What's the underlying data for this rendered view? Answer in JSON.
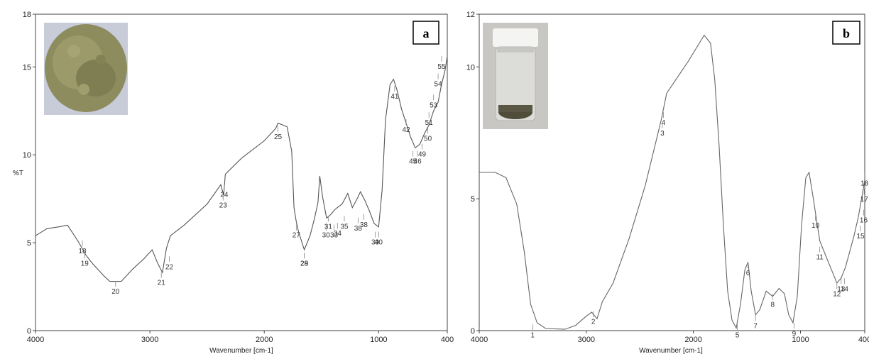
{
  "chart_data": [
    {
      "type": "line",
      "panel_label": "a",
      "xlabel": "Wavenumber [cm-1]",
      "ylabel": "%T",
      "xlim": [
        4000,
        400
      ],
      "ylim": [
        0,
        18
      ],
      "x_ticks": [
        4000,
        3000,
        2000,
        1000,
        400
      ],
      "y_ticks": [
        0,
        5,
        10,
        15,
        18
      ],
      "grid": false,
      "legend": "none",
      "inset": "photo-of-green-powder",
      "series": [
        {
          "color": "#555555",
          "points": [
            [
              4000,
              5.4
            ],
            [
              3900,
              5.8
            ],
            [
              3800,
              5.9
            ],
            [
              3720,
              6.0
            ],
            [
              3680,
              5.6
            ],
            [
              3620,
              5.0
            ],
            [
              3560,
              4.3
            ],
            [
              3500,
              3.8
            ],
            [
              3400,
              3.1
            ],
            [
              3350,
              2.8
            ],
            [
              3250,
              2.8
            ],
            [
              3150,
              3.5
            ],
            [
              3050,
              4.1
            ],
            [
              2980,
              4.6
            ],
            [
              2930,
              3.8
            ],
            [
              2890,
              3.3
            ],
            [
              2855,
              4.7
            ],
            [
              2820,
              5.4
            ],
            [
              2700,
              6.0
            ],
            [
              2500,
              7.2
            ],
            [
              2380,
              8.3
            ],
            [
              2355,
              7.7
            ],
            [
              2340,
              8.9
            ],
            [
              2200,
              9.8
            ],
            [
              2000,
              10.8
            ],
            [
              1900,
              11.5
            ],
            [
              1880,
              11.8
            ],
            [
              1800,
              11.6
            ],
            [
              1760,
              10.2
            ],
            [
              1740,
              7.0
            ],
            [
              1720,
              6.2
            ],
            [
              1700,
              5.6
            ],
            [
              1650,
              4.6
            ],
            [
              1600,
              5.4
            ],
            [
              1560,
              6.4
            ],
            [
              1530,
              7.3
            ],
            [
              1515,
              8.8
            ],
            [
              1490,
              7.6
            ],
            [
              1455,
              6.4
            ],
            [
              1420,
              6.6
            ],
            [
              1380,
              6.9
            ],
            [
              1320,
              7.2
            ],
            [
              1270,
              7.8
            ],
            [
              1230,
              7.0
            ],
            [
              1180,
              7.6
            ],
            [
              1160,
              7.9
            ],
            [
              1120,
              7.4
            ],
            [
              1080,
              6.8
            ],
            [
              1040,
              6.1
            ],
            [
              1000,
              5.9
            ],
            [
              970,
              8.0
            ],
            [
              940,
              12.0
            ],
            [
              900,
              14.0
            ],
            [
              870,
              14.3
            ],
            [
              840,
              13.7
            ],
            [
              800,
              12.6
            ],
            [
              760,
              11.8
            ],
            [
              720,
              11.0
            ],
            [
              680,
              10.4
            ],
            [
              640,
              10.6
            ],
            [
              600,
              11.2
            ],
            [
              560,
              11.7
            ],
            [
              520,
              12.5
            ],
            [
              480,
              13.0
            ],
            [
              450,
              14.0
            ],
            [
              420,
              14.8
            ],
            [
              400,
              15.6
            ]
          ]
        }
      ],
      "peak_labels": [
        {
          "text": "18",
          "x": 3590,
          "y": 4.4
        },
        {
          "text": "19",
          "x": 3570,
          "y": 3.7
        },
        {
          "text": "20",
          "x": 3300,
          "y": 2.1
        },
        {
          "text": "21",
          "x": 2900,
          "y": 2.6
        },
        {
          "text": "22",
          "x": 2830,
          "y": 3.5
        },
        {
          "text": "23",
          "x": 2360,
          "y": 7.0
        },
        {
          "text": "24",
          "x": 2350,
          "y": 7.6
        },
        {
          "text": "25",
          "x": 1880,
          "y": 10.9
        },
        {
          "text": "27",
          "x": 1720,
          "y": 5.3
        },
        {
          "text": "28",
          "x": 1650,
          "y": 3.7
        },
        {
          "text": "29",
          "x": 1650,
          "y": 3.7
        },
        {
          "text": "30",
          "x": 1460,
          "y": 5.3
        },
        {
          "text": "31",
          "x": 1440,
          "y": 5.8
        },
        {
          "text": "33",
          "x": 1390,
          "y": 5.3
        },
        {
          "text": "34",
          "x": 1360,
          "y": 5.4
        },
        {
          "text": "35",
          "x": 1300,
          "y": 5.8
        },
        {
          "text": "38",
          "x": 1180,
          "y": 5.7
        },
        {
          "text": "38",
          "x": 1130,
          "y": 5.9
        },
        {
          "text": "39",
          "x": 1030,
          "y": 4.9
        },
        {
          "text": "40",
          "x": 1000,
          "y": 4.9
        },
        {
          "text": "41",
          "x": 860,
          "y": 13.2
        },
        {
          "text": "42",
          "x": 760,
          "y": 11.3
        },
        {
          "text": "45",
          "x": 700,
          "y": 9.5
        },
        {
          "text": "46",
          "x": 660,
          "y": 9.5
        },
        {
          "text": "49",
          "x": 620,
          "y": 9.9
        },
        {
          "text": "50",
          "x": 570,
          "y": 10.8
        },
        {
          "text": "51",
          "x": 560,
          "y": 11.7
        },
        {
          "text": "53",
          "x": 520,
          "y": 12.7
        },
        {
          "text": "54",
          "x": 480,
          "y": 13.9
        },
        {
          "text": "55",
          "x": 450,
          "y": 14.9
        }
      ]
    },
    {
      "type": "line",
      "panel_label": "b",
      "xlabel": "Wavenumber [cm-1]",
      "ylabel": "",
      "xlim": [
        4000,
        400
      ],
      "ylim": [
        0,
        12
      ],
      "x_ticks": [
        4000,
        3000,
        2000,
        1000,
        400
      ],
      "y_ticks": [
        0,
        5,
        10,
        12
      ],
      "grid": false,
      "legend": "none",
      "inset": "photo-of-vial-with-sediment",
      "series": [
        {
          "color": "#666666",
          "points": [
            [
              4000,
              6.0
            ],
            [
              3850,
              6.0
            ],
            [
              3750,
              5.8
            ],
            [
              3650,
              4.8
            ],
            [
              3580,
              3.0
            ],
            [
              3520,
              1.0
            ],
            [
              3460,
              0.3
            ],
            [
              3380,
              0.08
            ],
            [
              3200,
              0.05
            ],
            [
              3100,
              0.2
            ],
            [
              3000,
              0.55
            ],
            [
              2950,
              0.7
            ],
            [
              2900,
              0.45
            ],
            [
              2850,
              1.1
            ],
            [
              2750,
              1.8
            ],
            [
              2600,
              3.5
            ],
            [
              2450,
              5.5
            ],
            [
              2300,
              8.0
            ],
            [
              2250,
              9.0
            ],
            [
              2150,
              9.6
            ],
            [
              2050,
              10.2
            ],
            [
              1960,
              10.8
            ],
            [
              1900,
              11.2
            ],
            [
              1840,
              10.9
            ],
            [
              1800,
              9.5
            ],
            [
              1760,
              7.0
            ],
            [
              1720,
              4.0
            ],
            [
              1680,
              1.5
            ],
            [
              1640,
              0.4
            ],
            [
              1600,
              0.1
            ],
            [
              1560,
              1.0
            ],
            [
              1520,
              2.3
            ],
            [
              1490,
              2.6
            ],
            [
              1460,
              1.5
            ],
            [
              1420,
              0.6
            ],
            [
              1380,
              0.8
            ],
            [
              1320,
              1.5
            ],
            [
              1260,
              1.3
            ],
            [
              1200,
              1.6
            ],
            [
              1150,
              1.4
            ],
            [
              1110,
              0.6
            ],
            [
              1070,
              0.3
            ],
            [
              1030,
              1.3
            ],
            [
              990,
              4.0
            ],
            [
              950,
              5.8
            ],
            [
              920,
              6.0
            ],
            [
              880,
              5.0
            ],
            [
              850,
              4.2
            ],
            [
              820,
              3.4
            ],
            [
              780,
              3.0
            ],
            [
              740,
              2.6
            ],
            [
              700,
              2.2
            ],
            [
              660,
              1.8
            ],
            [
              620,
              2.0
            ],
            [
              580,
              2.4
            ],
            [
              540,
              3.0
            ],
            [
              500,
              3.6
            ],
            [
              460,
              4.3
            ],
            [
              430,
              5.0
            ],
            [
              400,
              5.7
            ]
          ]
        }
      ],
      "peak_labels": [
        {
          "text": "1",
          "x": 3500,
          "y": -0.25
        },
        {
          "text": "2",
          "x": 2935,
          "y": 0.25
        },
        {
          "text": "3",
          "x": 2290,
          "y": 7.4
        },
        {
          "text": "4",
          "x": 2280,
          "y": 7.8
        },
        {
          "text": "5",
          "x": 1590,
          "y": -0.25
        },
        {
          "text": "6",
          "x": 1490,
          "y": 2.1
        },
        {
          "text": "7",
          "x": 1420,
          "y": 0.1
        },
        {
          "text": "8",
          "x": 1260,
          "y": 0.9
        },
        {
          "text": "9",
          "x": 1060,
          "y": -0.2
        },
        {
          "text": "10",
          "x": 860,
          "y": 3.9
        },
        {
          "text": "11",
          "x": 820,
          "y": 2.7
        },
        {
          "text": "12",
          "x": 660,
          "y": 1.3
        },
        {
          "text": "13",
          "x": 620,
          "y": 1.5
        },
        {
          "text": "14",
          "x": 590,
          "y": 1.5
        },
        {
          "text": "15",
          "x": 440,
          "y": 3.5
        },
        {
          "text": "16",
          "x": 410,
          "y": 4.1
        },
        {
          "text": "17",
          "x": 405,
          "y": 4.9
        },
        {
          "text": "18",
          "x": 402,
          "y": 5.5
        }
      ]
    }
  ]
}
